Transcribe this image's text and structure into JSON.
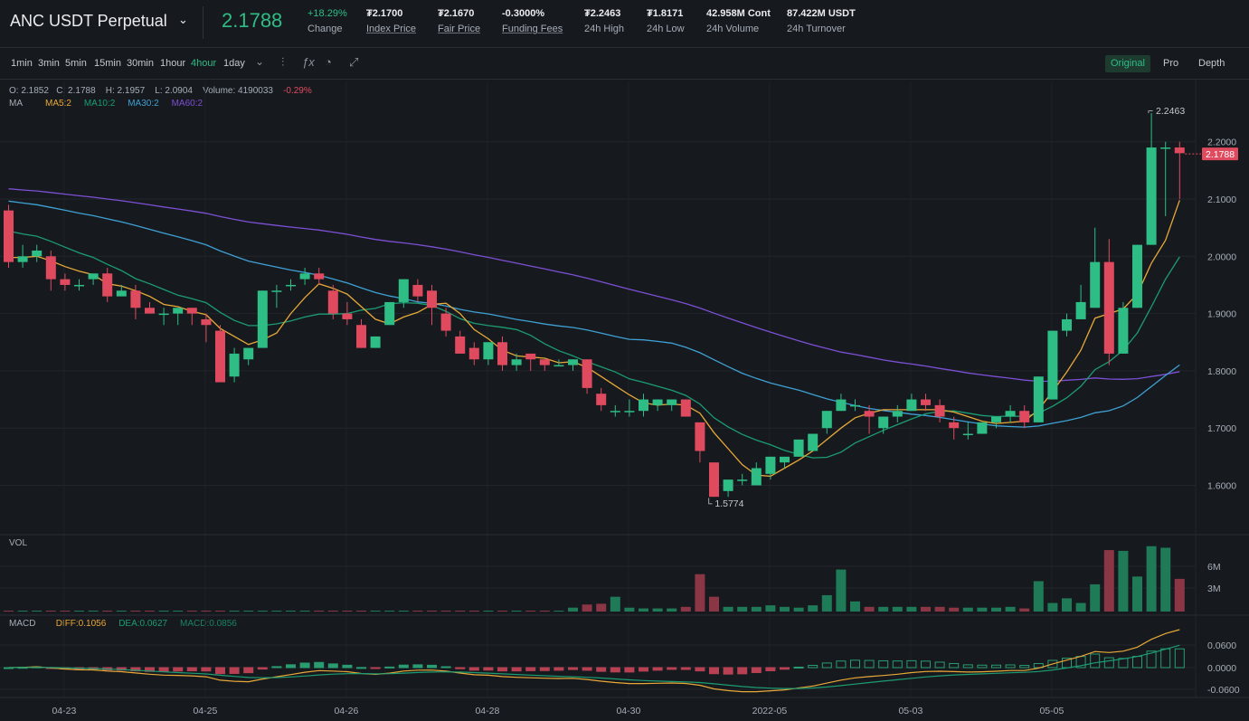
{
  "header": {
    "symbol": "ANC USDT Perpetual",
    "last_price": "2.1788",
    "change_value": "+18.29%",
    "change_label": "Change",
    "stats": [
      {
        "value": "₮2.1700",
        "label": "Index Price",
        "underline": true
      },
      {
        "value": "₮2.1670",
        "label": "Fair Price",
        "underline": true
      },
      {
        "value": "-0.3000%",
        "label": "Funding Fees",
        "underline": true
      },
      {
        "value": "₮2.2463",
        "label": "24h High",
        "underline": false
      },
      {
        "value": "₮1.8171",
        "label": "24h Low",
        "underline": false
      },
      {
        "value": "42.958M Cont",
        "label": "24h Volume",
        "underline": false
      },
      {
        "value": "87.422M USDT",
        "label": "24h Turnover",
        "underline": false
      }
    ]
  },
  "toolbar": {
    "timeframes": [
      "1min",
      "3min",
      "5min",
      "15min",
      "30min",
      "1hour",
      "4hour",
      "1day"
    ],
    "active_timeframe": "4hour",
    "views": [
      "Original",
      "Pro",
      "Depth"
    ],
    "active_view": "Original"
  },
  "legend": {
    "ohlc": {
      "o": "O: 2.1852",
      "c": "C: 2.1788",
      "h": "H: 2.1957",
      "l": "L: 2.0904",
      "volume": "Volume: 4190033",
      "change": "-0.29%"
    },
    "ma_title": "MA",
    "ma5": "MA5:2",
    "ma10": "MA10:2",
    "ma30": "MA30:2",
    "ma60": "MA60:2",
    "vol_title": "VOL",
    "macd_title": "MACD",
    "diff": "DIFF:0.1056",
    "dea": "DEA:0.0627",
    "macd": "MACD:0.0856"
  },
  "colors": {
    "up": "#2ebd85",
    "down": "#e04a5f",
    "ma5": "#e8a838",
    "ma10": "#1c9c72",
    "ma30": "#3fa0d4",
    "ma60": "#7c4fd4"
  },
  "chart_data": {
    "type": "candlestick",
    "price_axis": {
      "ticks": [
        "2.2000",
        "2.1000",
        "2.0000",
        "1.9000",
        "1.8000",
        "1.7000",
        "1.6000"
      ],
      "range": [
        1.5,
        2.3
      ],
      "current_label": "2.1788"
    },
    "annotations": {
      "high_label": "2.2463",
      "low_label": "1.5774"
    },
    "x_axis": {
      "ticks": [
        {
          "label": "04-23",
          "index": 4
        },
        {
          "label": "04-25",
          "index": 14
        },
        {
          "label": "04-26",
          "index": 24
        },
        {
          "label": "04-28",
          "index": 34
        },
        {
          "label": "04-30",
          "index": 44
        },
        {
          "label": "2022-05",
          "index": 54
        },
        {
          "label": "05-03",
          "index": 64
        },
        {
          "label": "05-05",
          "index": 74
        }
      ]
    },
    "candles": [
      [
        2.08,
        2.09,
        1.98,
        1.99
      ],
      [
        1.99,
        2.02,
        1.98,
        2.0
      ],
      [
        2.0,
        2.02,
        1.99,
        2.01
      ],
      [
        2.0,
        2.01,
        1.94,
        1.96
      ],
      [
        1.96,
        1.97,
        1.94,
        1.95
      ],
      [
        1.95,
        1.96,
        1.94,
        1.95
      ],
      [
        1.96,
        1.97,
        1.95,
        1.97
      ],
      [
        1.97,
        1.98,
        1.92,
        1.93
      ],
      [
        1.93,
        1.95,
        1.93,
        1.94
      ],
      [
        1.94,
        1.95,
        1.89,
        1.91
      ],
      [
        1.91,
        1.92,
        1.9,
        1.9
      ],
      [
        1.9,
        1.91,
        1.88,
        1.9
      ],
      [
        1.9,
        1.91,
        1.88,
        1.91
      ],
      [
        1.91,
        1.91,
        1.88,
        1.9
      ],
      [
        1.89,
        1.9,
        1.85,
        1.88
      ],
      [
        1.87,
        1.88,
        1.78,
        1.78
      ],
      [
        1.79,
        1.84,
        1.78,
        1.83
      ],
      [
        1.82,
        1.84,
        1.81,
        1.84
      ],
      [
        1.84,
        1.94,
        1.84,
        1.94
      ],
      [
        1.94,
        1.95,
        1.91,
        1.94
      ],
      [
        1.95,
        1.96,
        1.94,
        1.95
      ],
      [
        1.96,
        1.98,
        1.95,
        1.97
      ],
      [
        1.97,
        1.98,
        1.95,
        1.96
      ],
      [
        1.94,
        1.95,
        1.89,
        1.9
      ],
      [
        1.9,
        1.92,
        1.88,
        1.89
      ],
      [
        1.88,
        1.89,
        1.84,
        1.84
      ],
      [
        1.84,
        1.86,
        1.84,
        1.86
      ],
      [
        1.88,
        1.92,
        1.88,
        1.92
      ],
      [
        1.92,
        1.96,
        1.91,
        1.96
      ],
      [
        1.95,
        1.96,
        1.92,
        1.93
      ],
      [
        1.94,
        1.95,
        1.88,
        1.91
      ],
      [
        1.9,
        1.91,
        1.86,
        1.87
      ],
      [
        1.86,
        1.87,
        1.83,
        1.83
      ],
      [
        1.84,
        1.85,
        1.81,
        1.82
      ],
      [
        1.82,
        1.85,
        1.81,
        1.85
      ],
      [
        1.85,
        1.86,
        1.8,
        1.81
      ],
      [
        1.81,
        1.83,
        1.8,
        1.82
      ],
      [
        1.83,
        1.83,
        1.8,
        1.82
      ],
      [
        1.82,
        1.82,
        1.8,
        1.81
      ],
      [
        1.81,
        1.82,
        1.81,
        1.81
      ],
      [
        1.81,
        1.82,
        1.8,
        1.82
      ],
      [
        1.82,
        1.82,
        1.76,
        1.77
      ],
      [
        1.76,
        1.77,
        1.73,
        1.74
      ],
      [
        1.73,
        1.74,
        1.72,
        1.73
      ],
      [
        1.73,
        1.75,
        1.72,
        1.73
      ],
      [
        1.73,
        1.76,
        1.72,
        1.75
      ],
      [
        1.74,
        1.75,
        1.73,
        1.75
      ],
      [
        1.74,
        1.75,
        1.73,
        1.75
      ],
      [
        1.75,
        1.75,
        1.72,
        1.72
      ],
      [
        1.71,
        1.71,
        1.64,
        1.66
      ],
      [
        1.64,
        1.64,
        1.58,
        1.58
      ],
      [
        1.59,
        1.61,
        1.58,
        1.61
      ],
      [
        1.61,
        1.62,
        1.6,
        1.61
      ],
      [
        1.6,
        1.64,
        1.6,
        1.63
      ],
      [
        1.62,
        1.65,
        1.61,
        1.65
      ],
      [
        1.64,
        1.65,
        1.63,
        1.65
      ],
      [
        1.65,
        1.68,
        1.65,
        1.68
      ],
      [
        1.66,
        1.69,
        1.66,
        1.69
      ],
      [
        1.7,
        1.73,
        1.69,
        1.73
      ],
      [
        1.73,
        1.76,
        1.73,
        1.75
      ],
      [
        1.74,
        1.75,
        1.73,
        1.74
      ],
      [
        1.73,
        1.74,
        1.69,
        1.72
      ],
      [
        1.7,
        1.72,
        1.69,
        1.72
      ],
      [
        1.72,
        1.74,
        1.71,
        1.73
      ],
      [
        1.73,
        1.76,
        1.73,
        1.75
      ],
      [
        1.75,
        1.76,
        1.73,
        1.74
      ],
      [
        1.74,
        1.75,
        1.71,
        1.72
      ],
      [
        1.71,
        1.72,
        1.68,
        1.7
      ],
      [
        1.69,
        1.71,
        1.68,
        1.69
      ],
      [
        1.69,
        1.71,
        1.69,
        1.71
      ],
      [
        1.71,
        1.72,
        1.7,
        1.72
      ],
      [
        1.72,
        1.74,
        1.71,
        1.73
      ],
      [
        1.73,
        1.74,
        1.7,
        1.71
      ],
      [
        1.71,
        1.79,
        1.71,
        1.79
      ],
      [
        1.75,
        1.87,
        1.75,
        1.87
      ],
      [
        1.87,
        1.9,
        1.86,
        1.89
      ],
      [
        1.89,
        1.95,
        1.89,
        1.92
      ],
      [
        1.91,
        2.05,
        1.91,
        1.99
      ],
      [
        1.99,
        2.03,
        1.81,
        1.83
      ],
      [
        1.83,
        1.92,
        1.83,
        1.91
      ],
      [
        1.91,
        2.02,
        1.91,
        2.02
      ],
      [
        2.02,
        2.25,
        2.02,
        2.19
      ],
      [
        2.19,
        2.2,
        2.07,
        2.19
      ],
      [
        2.19,
        2.2,
        2.1,
        2.18
      ]
    ],
    "volume_axis": {
      "ticks": [
        "6M",
        "3M"
      ]
    },
    "volumes": [
      0.1,
      0.1,
      0.1,
      0.1,
      0.1,
      0.1,
      0.1,
      0.1,
      0.1,
      0.1,
      0.1,
      0.1,
      0.1,
      0.1,
      0.1,
      0.1,
      0.1,
      0.1,
      0.1,
      0.1,
      0.1,
      0.1,
      0.1,
      0.1,
      0.1,
      0.1,
      0.1,
      0.1,
      0.1,
      0.1,
      0.1,
      0.1,
      0.1,
      0.1,
      0.1,
      0.1,
      0.1,
      0.1,
      0.1,
      0.1,
      0.5,
      0.9,
      1.0,
      1.9,
      0.5,
      0.4,
      0.4,
      0.4,
      0.6,
      4.8,
      1.9,
      0.6,
      0.6,
      0.6,
      0.8,
      0.6,
      0.5,
      0.8,
      2.1,
      5.4,
      1.3,
      0.6,
      0.6,
      0.6,
      0.6,
      0.6,
      0.6,
      0.5,
      0.5,
      0.5,
      0.5,
      0.6,
      0.4,
      3.9,
      1.1,
      1.7,
      1.1,
      3.5,
      7.9,
      7.8,
      4.5,
      8.4,
      8.2,
      4.2
    ],
    "macd_axis": {
      "ticks": [
        "0.0600",
        "0.0000",
        "-0.0600"
      ]
    }
  }
}
